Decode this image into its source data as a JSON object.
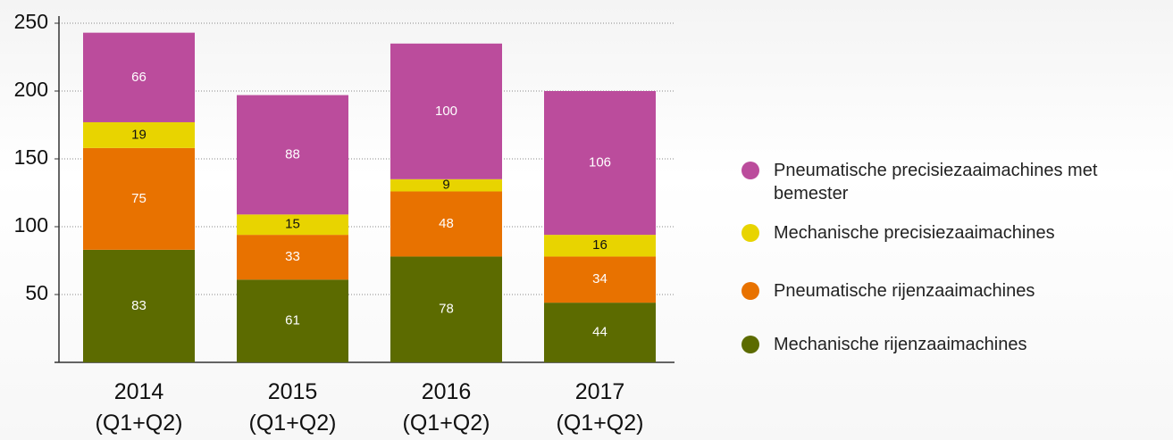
{
  "chart_data": {
    "type": "stacked_bar",
    "categories": [
      "2014\n(Q1+Q2)",
      "2015\n(Q1+Q2)",
      "2016\n(Q1+Q2)",
      "2017\n(Q1+Q2)"
    ],
    "series": [
      {
        "name": "Pneumatische precisiezaaimachines met bemester",
        "color": "#bb4c9c",
        "values": [
          66,
          88,
          100,
          106
        ]
      },
      {
        "name": "Mechanische precisiezaaimachines",
        "color": "#e8d400",
        "values": [
          19,
          15,
          9,
          16
        ]
      },
      {
        "name": "Pneumatische rijenzaaimachines",
        "color": "#e87200",
        "values": [
          75,
          33,
          48,
          34
        ]
      },
      {
        "name": "Mechanische rijenzaaimachines",
        "color": "#5c6b00",
        "values": [
          83,
          61,
          78,
          44
        ]
      }
    ],
    "ylim": [
      0,
      250
    ],
    "yticks": [
      50,
      100,
      150,
      200,
      250
    ],
    "grid": true,
    "legend": "right"
  }
}
